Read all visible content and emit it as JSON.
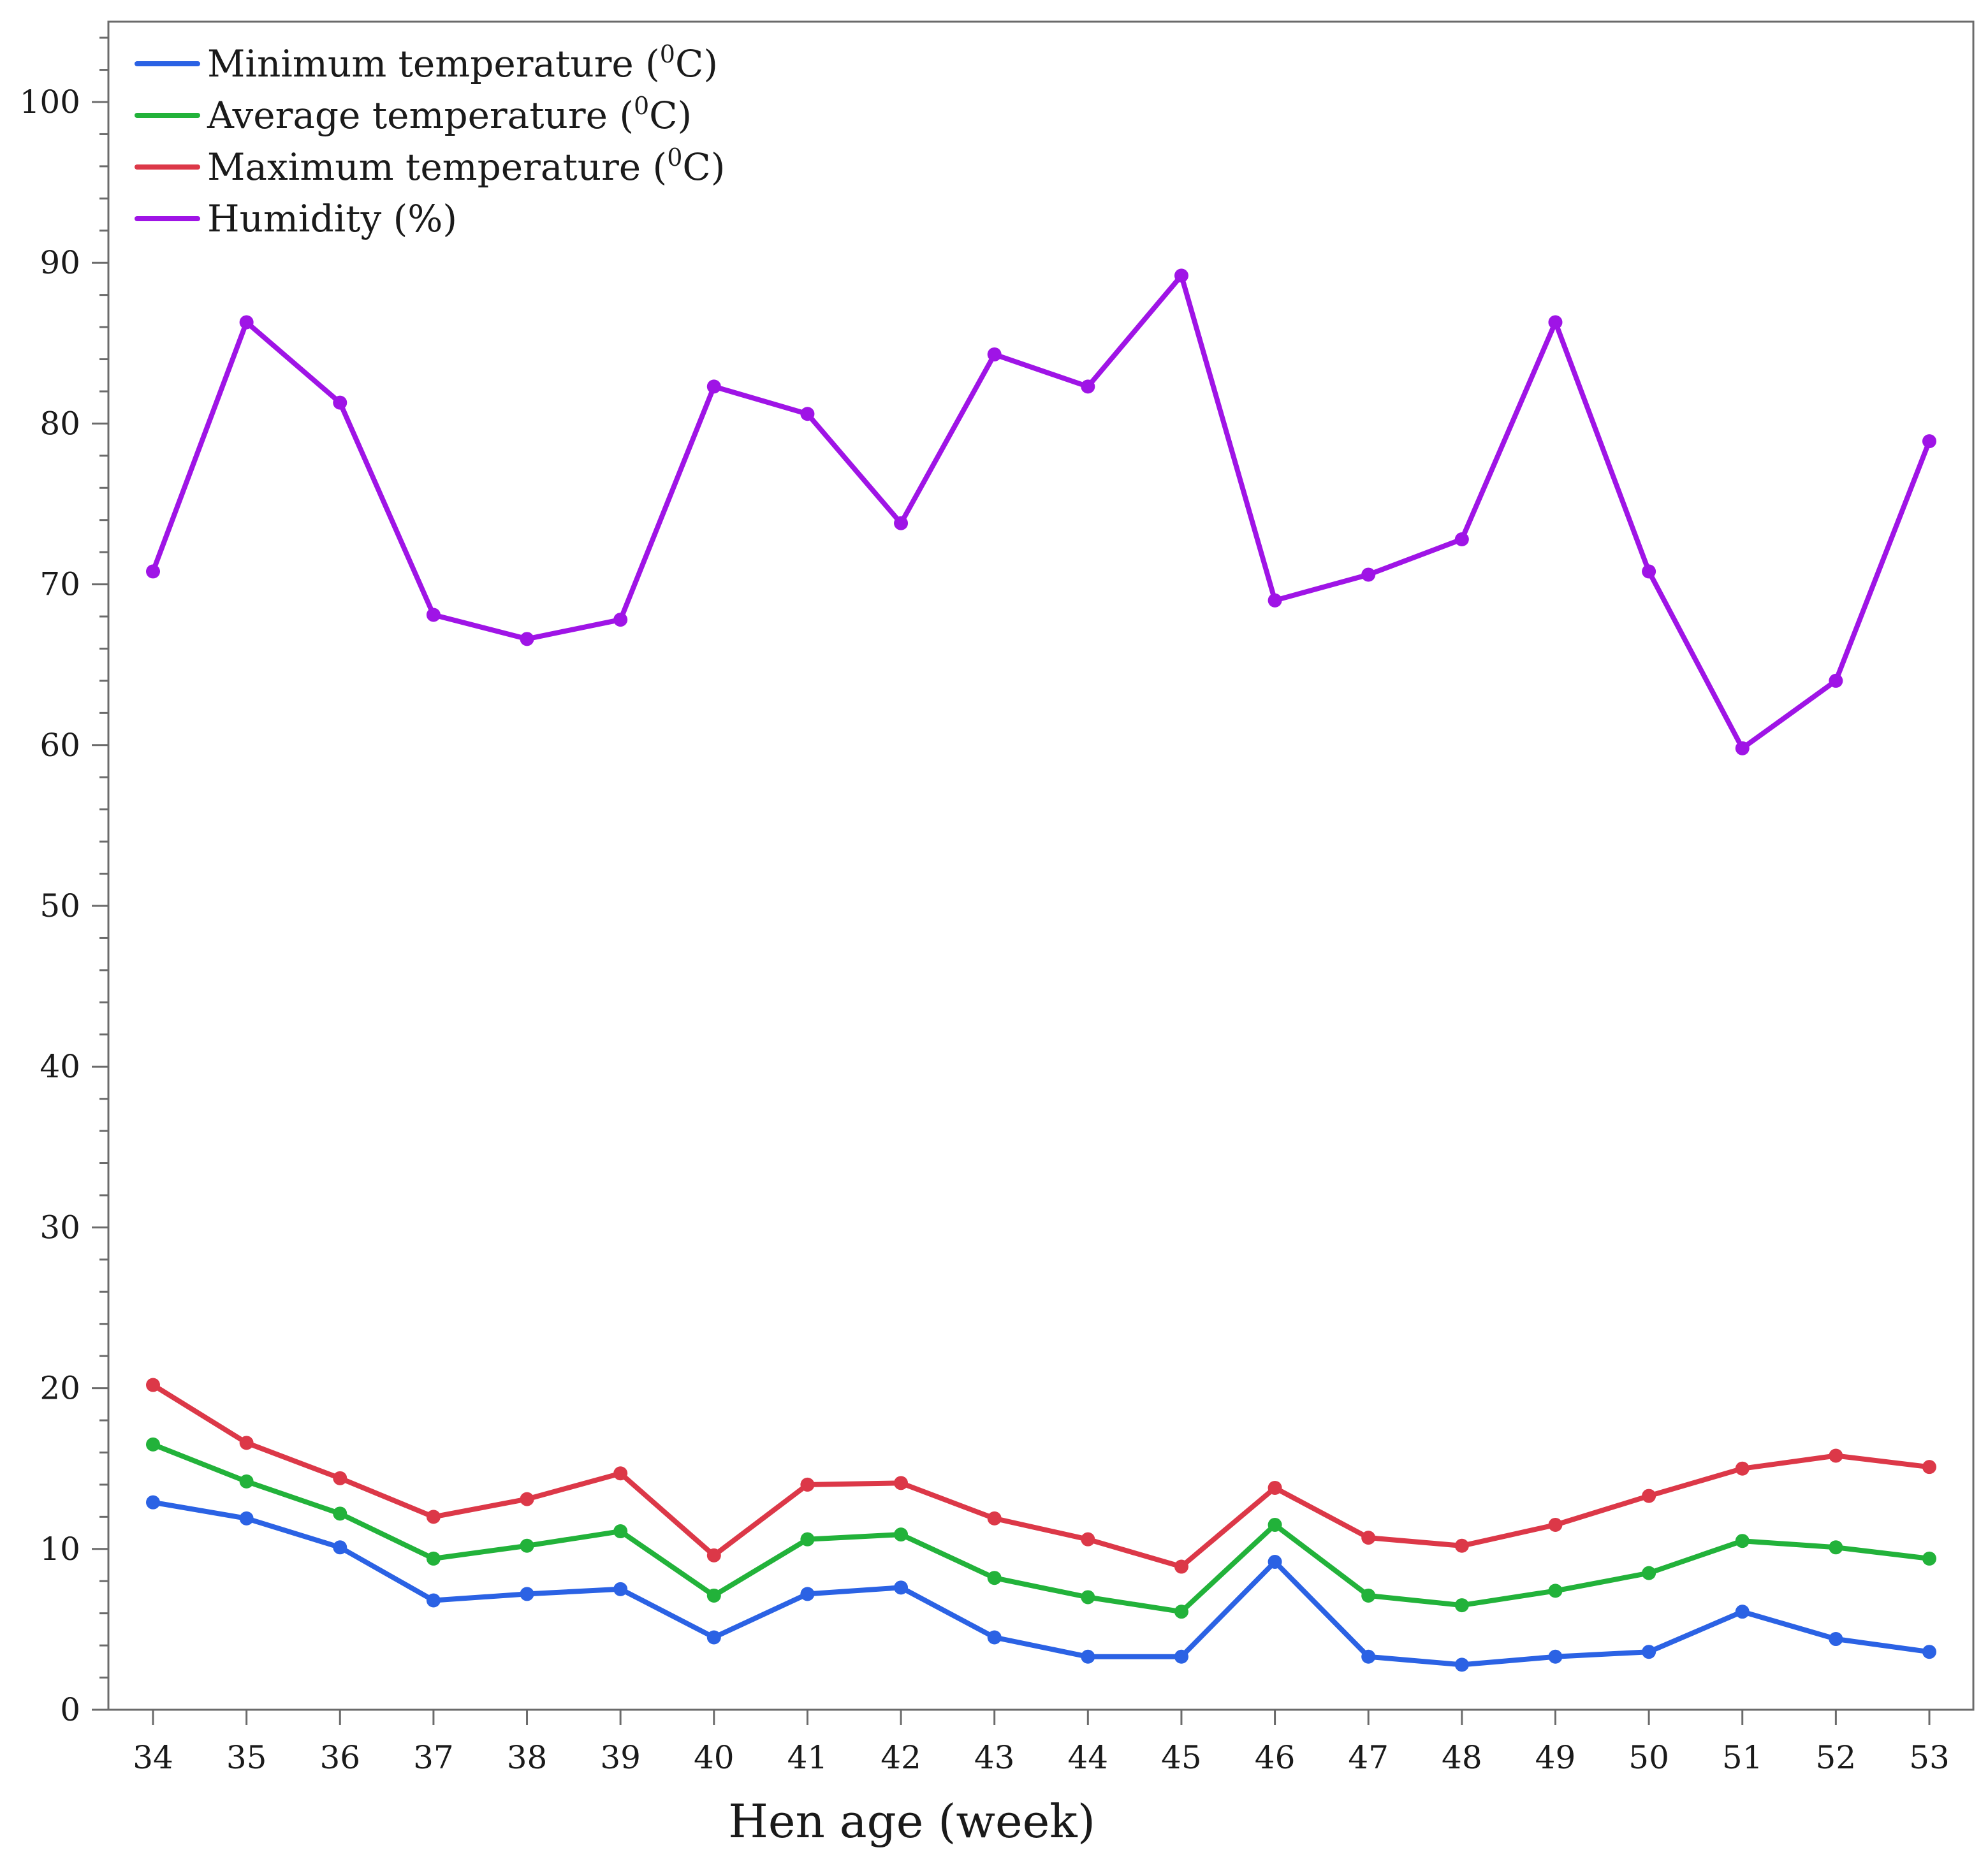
{
  "chart_data": {
    "type": "line",
    "title": "",
    "xlabel": "Hen age (week)",
    "ylabel": "",
    "x": [
      34,
      35,
      36,
      37,
      38,
      39,
      40,
      41,
      42,
      43,
      44,
      45,
      46,
      47,
      48,
      49,
      50,
      51,
      52,
      53
    ],
    "x_tick_labels": [
      "34",
      "35",
      "36",
      "37",
      "38",
      "39",
      "40",
      "41",
      "42",
      "43",
      "44",
      "45",
      "46",
      "47",
      "48",
      "49",
      "50",
      "51",
      "52",
      "53"
    ],
    "ylim": [
      0,
      105
    ],
    "y_ticks": [
      0,
      10,
      20,
      30,
      40,
      50,
      60,
      70,
      80,
      90,
      100
    ],
    "y_tick_labels": [
      "0",
      "10",
      "20",
      "30",
      "40",
      "50",
      "60",
      "70",
      "80",
      "90",
      "100"
    ],
    "y_minor_step": 2,
    "grid": false,
    "legend_position": "top-left",
    "series": [
      {
        "name": "Minimum temperature (0C)",
        "label_text": "Minimum temperature (",
        "label_sup": "0",
        "label_suffix": "C)",
        "color": "#2b62e4",
        "values": [
          12.9,
          11.9,
          10.1,
          6.8,
          7.2,
          7.5,
          4.5,
          7.2,
          7.6,
          4.5,
          3.3,
          3.3,
          9.2,
          3.3,
          2.8,
          3.3,
          3.6,
          6.1,
          4.4,
          3.6
        ]
      },
      {
        "name": "Average temperature (0C)",
        "label_text": "Average temperature (",
        "label_sup": "0",
        "label_suffix": "C)",
        "color": "#22b23a",
        "values": [
          16.5,
          14.2,
          12.2,
          9.4,
          10.2,
          11.1,
          7.1,
          10.6,
          10.9,
          8.2,
          7.0,
          6.1,
          11.5,
          7.1,
          6.5,
          7.4,
          8.5,
          10.5,
          10.1,
          9.4
        ]
      },
      {
        "name": "Maximum temperature (0C)",
        "label_text": "Maximum temperature (",
        "label_sup": "0",
        "label_suffix": "C)",
        "color": "#dc3848",
        "values": [
          20.2,
          16.6,
          14.4,
          12.0,
          13.1,
          14.7,
          9.6,
          14.0,
          14.1,
          11.9,
          10.6,
          8.9,
          13.8,
          10.7,
          10.2,
          11.5,
          13.3,
          15.0,
          15.8,
          15.1
        ]
      },
      {
        "name": "Humidity (%)",
        "label_text": "Humidity (%)",
        "label_sup": "",
        "label_suffix": "",
        "color": "#9f14e6",
        "values": [
          70.8,
          86.3,
          81.3,
          68.1,
          66.6,
          67.8,
          82.3,
          80.6,
          73.8,
          84.3,
          82.3,
          89.2,
          69.0,
          70.6,
          72.8,
          86.3,
          70.8,
          59.8,
          64.0,
          78.9
        ]
      }
    ]
  }
}
